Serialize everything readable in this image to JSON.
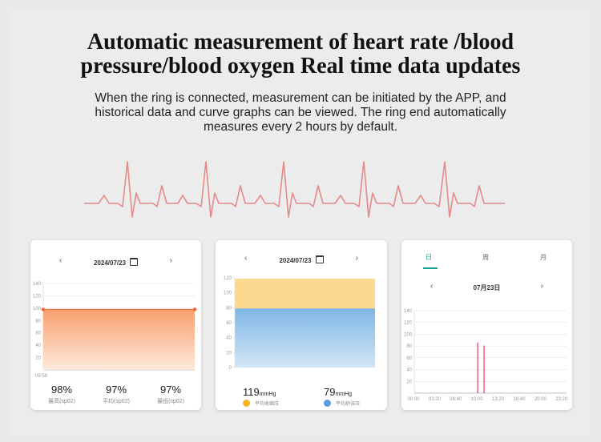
{
  "header": {
    "title_line1": "Automatic measurement of heart rate /blood",
    "title_line2": "pressure/blood oxygen Real time data updates",
    "desc_line1": "When the ring is connected, measurement can be initiated by the APP, and",
    "desc_line2": "historical data and curve graphs can be viewed. The ring end automatically",
    "desc_line3": "measures every 2 hours by default."
  },
  "icons": {
    "prev": "chevron-left-icon",
    "next": "chevron-right-icon",
    "calendar": "calendar-icon"
  },
  "spo2_card": {
    "prev_symbol": "‹",
    "next_symbol": "›",
    "date": "2024/07/23",
    "time_label": "09:58",
    "stats": [
      {
        "value": "98%",
        "label": "最高(sp02)"
      },
      {
        "value": "97%",
        "label": "平均(sp02)"
      },
      {
        "value": "97%",
        "label": "最低(sp02)"
      }
    ]
  },
  "bp_card": {
    "prev_symbol": "‹",
    "next_symbol": "›",
    "date": "2024/07/23",
    "systolic": {
      "value": "119",
      "unit": "mmHg",
      "label": "平均收缩压",
      "color": "#f5b624"
    },
    "diastolic": {
      "value": "79",
      "unit": "mmHg",
      "label": "平均舒张压",
      "color": "#5b9be0"
    }
  },
  "hr_card": {
    "tabs": [
      "日",
      "周",
      "月"
    ],
    "prev_symbol": "‹",
    "next_symbol": "›",
    "date": "07月23日"
  },
  "chart_data": [
    {
      "type": "area",
      "yticks": [
        20,
        40,
        60,
        80,
        100,
        120,
        140
      ],
      "ylim": [
        0,
        140
      ],
      "x_label": "09:58",
      "series": [
        {
          "values": [
            98,
            98
          ]
        }
      ],
      "colors": {
        "line": "#f26a3a",
        "fill_top": "#f8a06d",
        "fill_bottom": "#fde6d6"
      }
    },
    {
      "type": "bar",
      "yticks": [
        0,
        20,
        40,
        60,
        80,
        100,
        120
      ],
      "ylim": [
        0,
        120
      ],
      "series": [
        {
          "values": [
            119
          ],
          "color": "#fbd98e"
        },
        {
          "values": [
            79
          ],
          "color": "#8ec1e8"
        }
      ]
    },
    {
      "type": "bar",
      "yticks": [
        20,
        40,
        60,
        80,
        100,
        120,
        140
      ],
      "ylim": [
        0,
        140
      ],
      "x": [
        "00:00",
        "03:20",
        "06:40",
        "10:00",
        "13:20",
        "16:40",
        "20:00",
        "23:20"
      ],
      "points": [
        {
          "x_hours": 10.0,
          "value": 86
        },
        {
          "x_hours": 11.0,
          "value": 81
        }
      ],
      "color": "#e0455a"
    }
  ]
}
